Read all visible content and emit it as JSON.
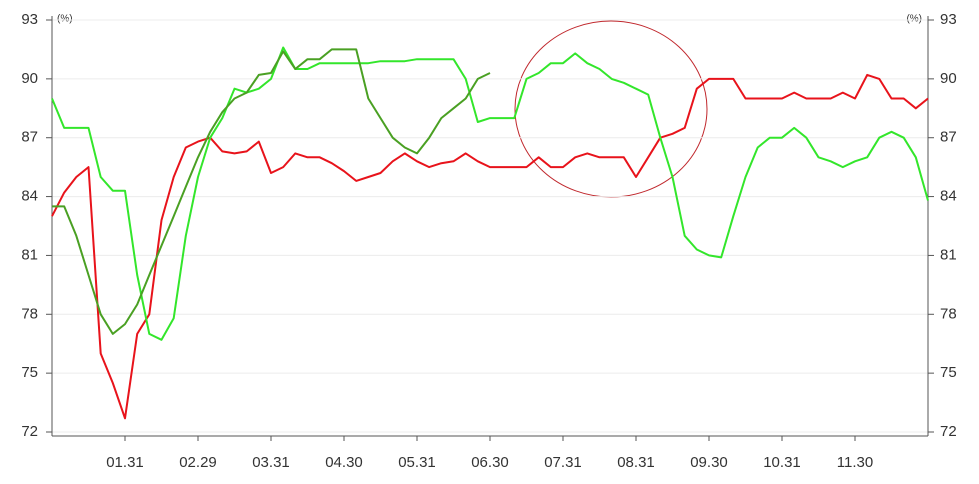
{
  "chart_data": {
    "type": "line",
    "y_unit": "(%)",
    "y2_unit": "(%)",
    "categories": [
      null,
      null,
      null,
      null,
      null,
      null,
      "01.31",
      null,
      null,
      null,
      null,
      null,
      "02.29",
      null,
      null,
      null,
      null,
      null,
      "03.31",
      null,
      null,
      null,
      null,
      null,
      "04.30",
      null,
      null,
      null,
      null,
      null,
      "05.31",
      null,
      null,
      null,
      null,
      null,
      "06.30",
      null,
      null,
      null,
      null,
      null,
      "07.31",
      null,
      null,
      null,
      null,
      null,
      "08.31",
      null,
      null,
      null,
      null,
      null,
      "09.30",
      null,
      null,
      null,
      null,
      null,
      "10.31",
      null,
      null,
      null,
      null,
      null,
      "11.30",
      null,
      null,
      null,
      null,
      null,
      null
    ],
    "series": [
      {
        "color": "#e8131b",
        "values": [
          83,
          84.2,
          85,
          85.5,
          76,
          74.5,
          72.7,
          77,
          78,
          82.8,
          85,
          86.5,
          86.8,
          87,
          86.3,
          86.2,
          86.3,
          86.8,
          85.2,
          85.5,
          86.2,
          86,
          86,
          85.7,
          85.3,
          84.8,
          85,
          85.2,
          85.8,
          86.2,
          85.8,
          85.5,
          85.7,
          85.8,
          86.2,
          85.8,
          85.5,
          85.5,
          85.5,
          85.5,
          86,
          85.5,
          85.5,
          86,
          86.2,
          86,
          86,
          86,
          85,
          86,
          87,
          87.2,
          87.5,
          89.5,
          90,
          90,
          90,
          89,
          89,
          89,
          89,
          89.3,
          89,
          89,
          89,
          89.3,
          89,
          90.2,
          90,
          89,
          89,
          88.5,
          89
        ]
      },
      {
        "color": "#33e62b",
        "values": [
          89,
          87.5,
          87.5,
          87.5,
          85,
          84.3,
          84.3,
          80,
          77,
          76.7,
          77.8,
          82,
          85,
          87,
          88,
          89.5,
          89.3,
          89.5,
          90,
          91.6,
          90.5,
          90.5,
          90.8,
          90.8,
          90.8,
          90.8,
          90.8,
          90.9,
          90.9,
          90.9,
          91,
          91,
          91,
          91,
          90,
          87.8,
          88,
          88,
          88,
          90,
          90.3,
          90.8,
          90.8,
          91.3,
          90.8,
          90.5,
          90,
          89.8,
          89.5,
          89.2,
          87,
          85,
          82,
          81.3,
          81,
          80.9,
          83,
          85,
          86.5,
          87,
          87,
          87.5,
          87,
          86,
          85.8,
          85.5,
          85.8,
          86,
          87,
          87.3,
          87,
          86,
          83.8
        ]
      },
      {
        "color": "#4aa023",
        "values": [
          83.5,
          83.5,
          82,
          80,
          78,
          77,
          77.5,
          78.5,
          80,
          81.5,
          83,
          84.5,
          86,
          87.3,
          88.3,
          89,
          89.3,
          90.2,
          90.3,
          91.4,
          90.5,
          91,
          91,
          91.5,
          91.5,
          91.5,
          89,
          88,
          87,
          86.5,
          86.2,
          87,
          88,
          88.5,
          89,
          90,
          90.3,
          null,
          null,
          null,
          null,
          null,
          null,
          null,
          null,
          null,
          null,
          null,
          null,
          null,
          null,
          null,
          null,
          null,
          null,
          null,
          null,
          null,
          null,
          null,
          null,
          null,
          null,
          null,
          null,
          null,
          null,
          null,
          null,
          null,
          null,
          null,
          null
        ]
      }
    ],
    "ylim": [
      72,
      93
    ],
    "yticks": [
      72,
      75,
      78,
      81,
      84,
      87,
      90,
      93
    ],
    "y2lim": [
      72,
      93
    ],
    "y2ticks": [
      72,
      75,
      78,
      81,
      84,
      87,
      90,
      93
    ],
    "grid": true
  }
}
